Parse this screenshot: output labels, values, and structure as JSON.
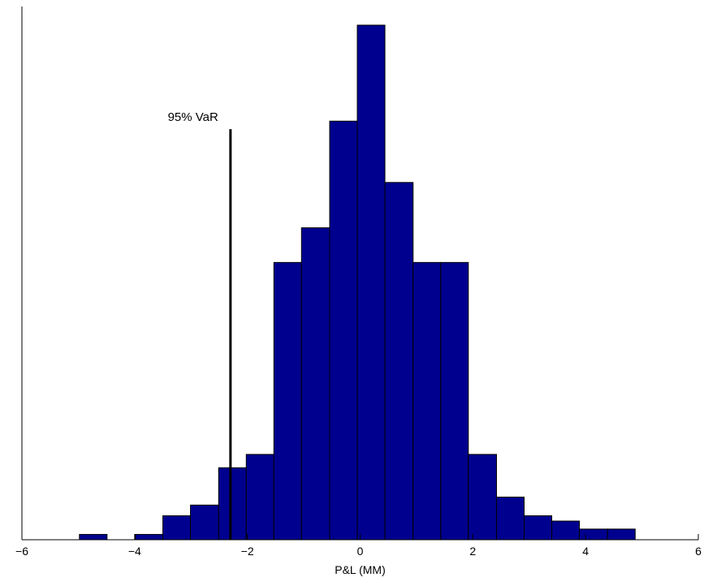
{
  "chart_data": {
    "type": "bar",
    "title": "",
    "xlabel": "P&L (MM)",
    "ylabel": "",
    "xlim": [
      -6,
      6
    ],
    "ylim": [
      0,
      100
    ],
    "grid": false,
    "legend": "none",
    "xticks": [
      -6,
      -4,
      -2,
      0,
      2,
      4,
      6
    ],
    "xtick_labels": [
      "−6",
      "−4",
      "−2",
      "0",
      "2",
      "4",
      "6"
    ],
    "bin_edges": [
      -4.98,
      -4.49,
      -3.99,
      -3.5,
      -3.01,
      -2.51,
      -2.02,
      -1.53,
      -1.04,
      -0.54,
      -0.05,
      0.44,
      0.94,
      1.43,
      1.92,
      2.42,
      2.91,
      3.4,
      3.89,
      4.39,
      4.88
    ],
    "values": [
      1,
      0,
      1,
      4.5,
      6.5,
      13.5,
      16,
      52,
      58.5,
      78.5,
      96.5,
      67,
      52,
      52,
      16,
      8,
      4.5,
      3.5,
      2,
      2
    ],
    "bar_color": "#00008f",
    "annotations": [
      {
        "label": "95% VaR",
        "x": -2.3,
        "y_top": 77
      }
    ]
  }
}
